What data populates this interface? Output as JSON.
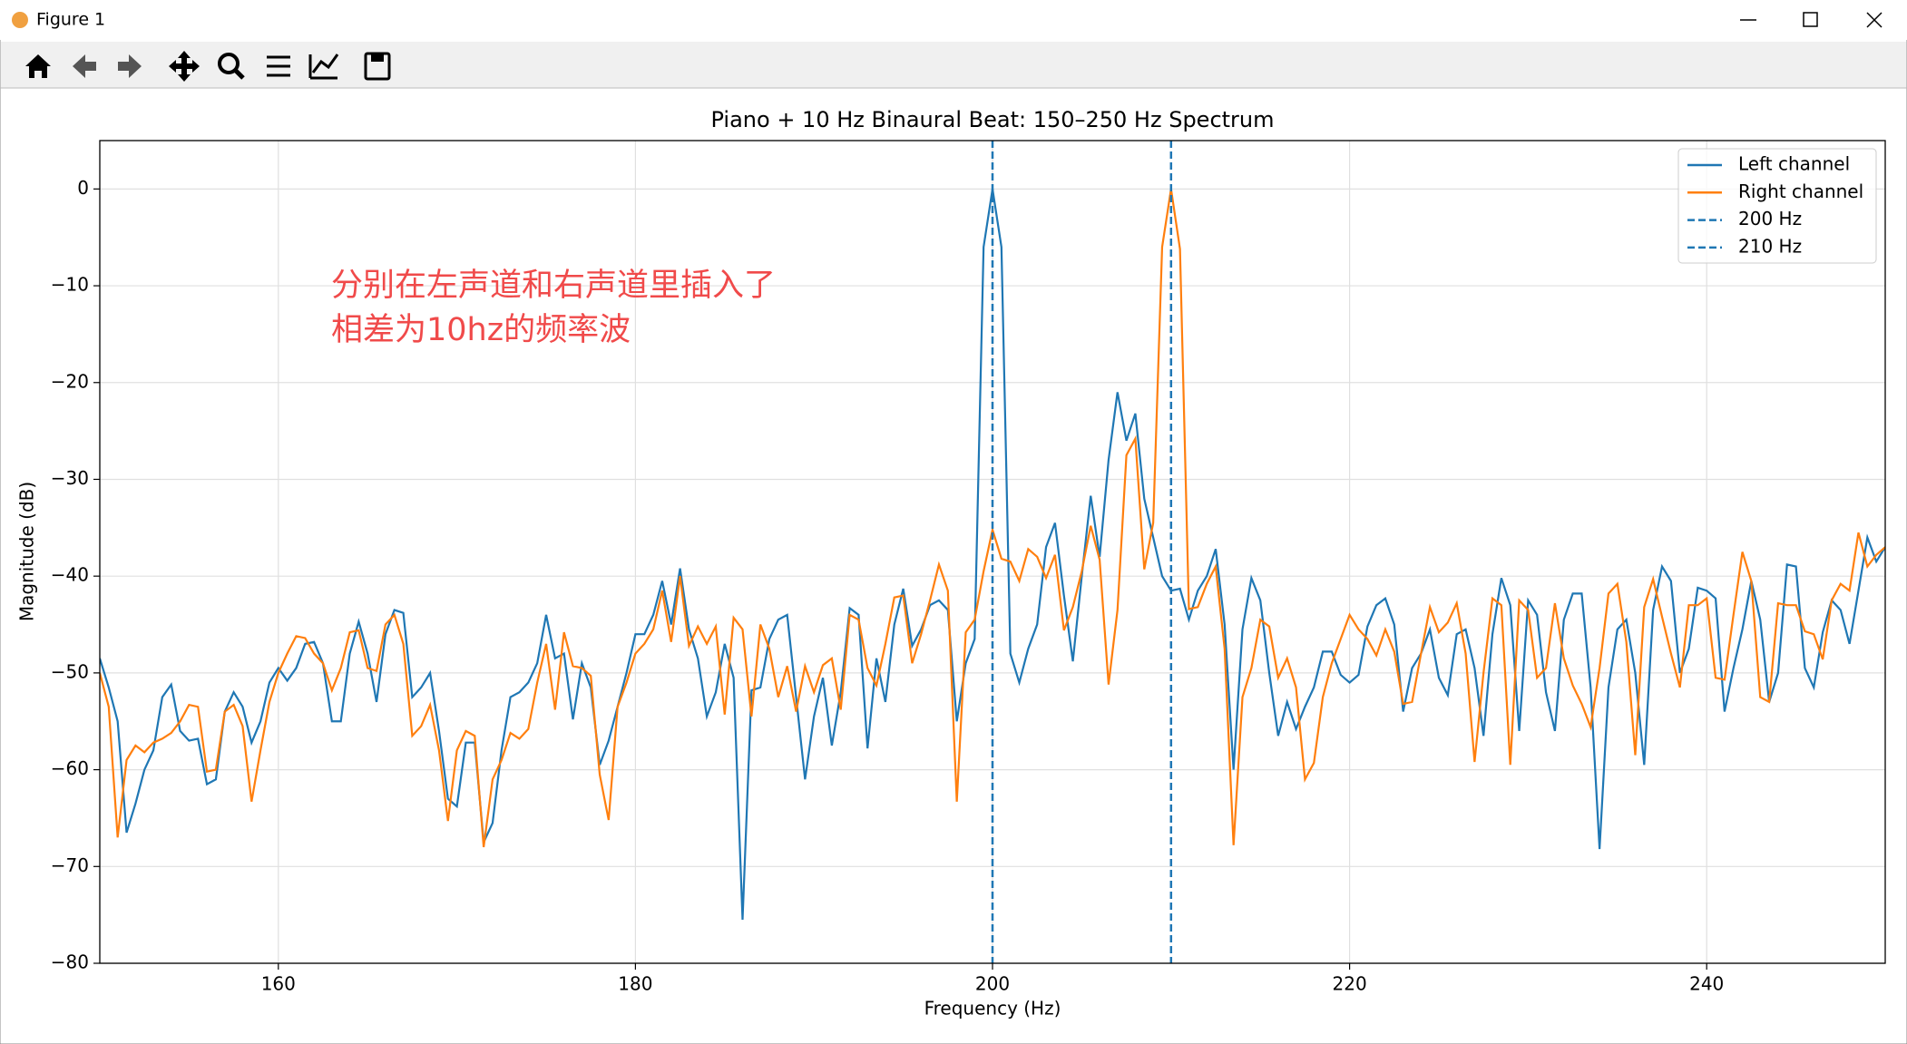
{
  "window": {
    "title": "Figure 1"
  },
  "chart_data": {
    "type": "line",
    "title": "Piano + 10 Hz Binaural Beat: 150–250 Hz Spectrum",
    "xlabel": "Frequency (Hz)",
    "ylabel": "Magnitude (dB)",
    "annotations": [
      "分别在左声道和右声道里插入了",
      "相差为10hz的频率波"
    ],
    "x": [
      150,
      150.5,
      151,
      151.5,
      152,
      152.5,
      153,
      153.5,
      154,
      154.5,
      155,
      155.5,
      156,
      156.5,
      157,
      157.5,
      158,
      158.5,
      159,
      159.5,
      160,
      160.5,
      161,
      161.5,
      162,
      162.5,
      163,
      163.5,
      164,
      164.5,
      165,
      165.5,
      166,
      166.5,
      167,
      167.5,
      168,
      168.5,
      169,
      169.5,
      170,
      170.5,
      171,
      171.5,
      172,
      172.5,
      173,
      173.5,
      174,
      174.5,
      175,
      175.5,
      176,
      176.5,
      177,
      177.5,
      178,
      178.5,
      179,
      179.5,
      180,
      180.5,
      181,
      181.5,
      182,
      182.5,
      183,
      183.5,
      184,
      184.5,
      185,
      185.5,
      186,
      186.5,
      187,
      187.5,
      188,
      188.5,
      189,
      189.5,
      190,
      190.5,
      191,
      191.5,
      192,
      192.5,
      193,
      193.5,
      194,
      194.5,
      195,
      195.5,
      196,
      196.5,
      197,
      197.5,
      198,
      198.5,
      199,
      199.5,
      200,
      200.5,
      201,
      201.5,
      202,
      202.5,
      203,
      203.5,
      204,
      204.5,
      205,
      205.5,
      206,
      206.5,
      207,
      207.5,
      208,
      208.5,
      209,
      209.5,
      210,
      210.5,
      211,
      211.5,
      212,
      212.5,
      213,
      213.5,
      214,
      214.5,
      215,
      215.5,
      216,
      216.5,
      217,
      217.5,
      218,
      218.5,
      219,
      219.5,
      220,
      220.5,
      221,
      221.5,
      222,
      222.5,
      223,
      223.5,
      224,
      224.5,
      225,
      225.5,
      226,
      226.5,
      227,
      227.5,
      228,
      228.5,
      229,
      229.5,
      230,
      230.5,
      231,
      231.5,
      232,
      232.5,
      233,
      233.5,
      234,
      234.5,
      235,
      235.5,
      236,
      236.5,
      237,
      237.5,
      238,
      238.5,
      239,
      239.5,
      240,
      240.5,
      241,
      241.5,
      242,
      242.5,
      243,
      243.5,
      244,
      244.5,
      245,
      245.5,
      246,
      246.5,
      247,
      247.5,
      248,
      248.5,
      249,
      249.5,
      250
    ],
    "series": [
      {
        "name": "Left channel",
        "color": "#1f77b4",
        "values": [
          -48.5,
          -51.5,
          -55,
          -66.5,
          -63.5,
          -60,
          -58,
          -52.5,
          -51.2,
          -56,
          -57,
          -56.8,
          -61.5,
          -61,
          -54,
          -52,
          -53.5,
          -57.2,
          -55,
          -51,
          -49.5,
          -50.8,
          -49.5,
          -47,
          -46.8,
          -49,
          -55,
          -55,
          -48,
          -44.7,
          -48,
          -53,
          -46,
          -43.5,
          -43.8,
          -52.5,
          -51.5,
          -50,
          -56,
          -63,
          -63.8,
          -57.2,
          -57.2,
          -67.5,
          -65.5,
          -58,
          -52.5,
          -52,
          -51,
          -49,
          -44,
          -48.5,
          -48,
          -54.8,
          -49,
          -51.5,
          -59.5,
          -57,
          -53.5,
          -50,
          -46,
          -46,
          -44,
          -40.5,
          -45,
          -39.2,
          -45.5,
          -48.5,
          -54.5,
          -52,
          -47,
          -50.5,
          -75.5,
          -51.8,
          -51.5,
          -46.5,
          -44.5,
          -44,
          -52.5,
          -61,
          -54.5,
          -50.5,
          -57.5,
          -52,
          -43.3,
          -44,
          -57.8,
          -48.5,
          -53,
          -45,
          -41.3,
          -47.2,
          -45.5,
          -43,
          -42.5,
          -43.5,
          -55,
          -49,
          -46.5,
          -6,
          0,
          -6,
          -48,
          -51,
          -47.5,
          -45,
          -37,
          -34.5,
          -42,
          -48.8,
          -40,
          -31.7,
          -38,
          -28,
          -21,
          -26,
          -23.2,
          -32,
          -36,
          -40,
          -41.5,
          -41.3,
          -44.5,
          -41.5,
          -40,
          -37.2,
          -45,
          -60,
          -45.5,
          -40.2,
          -42.5,
          -50,
          -56.5,
          -53,
          -55.8,
          -53.5,
          -51.5,
          -47.8,
          -47.8,
          -50.2,
          -51,
          -50.2,
          -45.2,
          -43,
          -42.3,
          -45,
          -54,
          -49.5,
          -48,
          -45.5,
          -50.5,
          -52.3,
          -46,
          -45.5,
          -49.5,
          -56.5,
          -46,
          -40.2,
          -43,
          -56,
          -42.5,
          -44,
          -52,
          -56,
          -44.5,
          -41.8,
          -41.8,
          -51.5,
          -68.2,
          -51.5,
          -45.5,
          -44.5,
          -50,
          -59.5,
          -43.5,
          -39,
          -40.5,
          -50,
          -47.5,
          -41.2,
          -41.5,
          -42.3,
          -54,
          -49.5,
          -45.5,
          -40.5,
          -44.5,
          -53,
          -50,
          -38.8,
          -39,
          -49.5,
          -51.5,
          -45.8,
          -42.5,
          -43.5,
          -47,
          -41.5,
          -36,
          -38.5,
          -37
        ]
      },
      {
        "name": "Right channel",
        "color": "#ff7f0e",
        "values": [
          -50,
          -53.5,
          -67,
          -59,
          -57.5,
          -58.2,
          -57.2,
          -56.8,
          -56.2,
          -55,
          -53.3,
          -53.5,
          -60.2,
          -60,
          -54,
          -53.3,
          -55.5,
          -63.3,
          -58,
          -53,
          -50,
          -48,
          -46.2,
          -46.4,
          -48,
          -49,
          -51.8,
          -49.5,
          -45.8,
          -45.6,
          -49.5,
          -49.8,
          -45,
          -44,
          -47,
          -56.5,
          -55.5,
          -53.3,
          -58,
          -65.3,
          -58,
          -56,
          -56.5,
          -68,
          -61,
          -59,
          -56.2,
          -56.8,
          -55.8,
          -51,
          -47,
          -53.8,
          -45.8,
          -49.3,
          -49.5,
          -50.3,
          -60.5,
          -65.2,
          -53.5,
          -51,
          -48,
          -47,
          -45.5,
          -41.5,
          -46.8,
          -40,
          -47.2,
          -45.2,
          -47,
          -45.2,
          -54.3,
          -44.3,
          -45.5,
          -54.5,
          -45,
          -47.5,
          -52.5,
          -49.3,
          -54,
          -49.3,
          -52,
          -49.2,
          -48.5,
          -53.8,
          -44,
          -44.5,
          -49.5,
          -51.3,
          -47,
          -42.2,
          -42,
          -49,
          -46,
          -42.5,
          -38.8,
          -41.5,
          -63.3,
          -45.8,
          -44.5,
          -39.5,
          -35.2,
          -38.2,
          -38.5,
          -40.5,
          -37.2,
          -38,
          -40.2,
          -37.8,
          -45.6,
          -43.2,
          -39.5,
          -34.8,
          -38.3,
          -51.2,
          -43.5,
          -27.5,
          -25.8,
          -39.3,
          -34.5,
          -6,
          0,
          -6.2,
          -43.4,
          -43.2,
          -40.8,
          -39,
          -47.5,
          -67.8,
          -52.5,
          -49.5,
          -44.5,
          -45.2,
          -50.5,
          -48.5,
          -51.5,
          -61,
          -59.3,
          -52.5,
          -49,
          -46.5,
          -44,
          -45.5,
          -46.5,
          -48.2,
          -45.5,
          -47.8,
          -53.2,
          -53,
          -48,
          -43.2,
          -45.8,
          -44.8,
          -42.8,
          -48,
          -59.2,
          -50,
          -42.3,
          -43,
          -59.5,
          -42.5,
          -43.5,
          -50.5,
          -49.5,
          -42.8,
          -48.5,
          -51.3,
          -53.2,
          -55.6,
          -49.5,
          -41.8,
          -40.8,
          -46.8,
          -58.5,
          -43.2,
          -40.3,
          -44.2,
          -48,
          -51.5,
          -43,
          -43,
          -42.3,
          -50.5,
          -50.7,
          -44,
          -37.5,
          -40.5,
          -52.5,
          -53,
          -42.8,
          -43,
          -43,
          -45.7,
          -46,
          -48.6,
          -42.5,
          -40.8,
          -41.5,
          -35.5,
          -39,
          -37.8,
          -37
        ]
      }
    ],
    "vlines": [
      {
        "name": "200 Hz",
        "x": 200,
        "color": "#1f77b4"
      },
      {
        "name": "210 Hz",
        "x": 210,
        "color": "#1f77b4"
      }
    ],
    "xlim": [
      150,
      250
    ],
    "xticks": [
      160,
      180,
      200,
      220,
      240
    ],
    "ylim": [
      -80,
      5
    ],
    "yticks": [
      {
        "value": -80,
        "label": "−80"
      },
      {
        "value": -70,
        "label": "−70"
      },
      {
        "value": -60,
        "label": "−60"
      },
      {
        "value": -50,
        "label": "−50"
      },
      {
        "value": -40,
        "label": "−40"
      },
      {
        "value": -30,
        "label": "−30"
      },
      {
        "value": -20,
        "label": "−20"
      },
      {
        "value": -10,
        "label": "−10"
      },
      0
    ],
    "grid": true,
    "legend": "upper right"
  }
}
